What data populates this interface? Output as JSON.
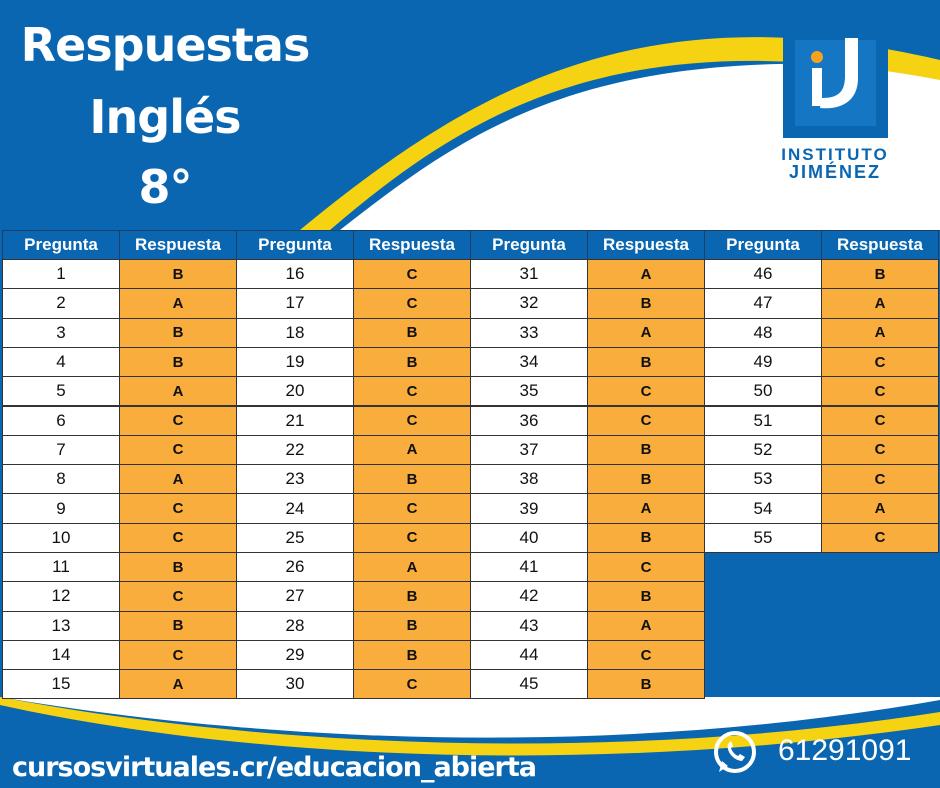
{
  "header": {
    "title_lines": [
      "Respuestas",
      "Inglés",
      "8°"
    ]
  },
  "logo": {
    "line1": "INSTITUTO",
    "line2": "JIMÉNEZ"
  },
  "table": {
    "headers": [
      "Pregunta",
      "Respuesta",
      "Pregunta",
      "Respuesta",
      "Pregunta",
      "Respuesta",
      "Pregunta",
      "Respuesta"
    ],
    "groups": [
      {
        "rows": [
          [
            1,
            "B"
          ],
          [
            2,
            "A"
          ],
          [
            3,
            "B"
          ],
          [
            4,
            "B"
          ],
          [
            5,
            "A"
          ],
          [
            6,
            "C"
          ],
          [
            7,
            "C"
          ],
          [
            8,
            "A"
          ],
          [
            9,
            "C"
          ],
          [
            10,
            "C"
          ],
          [
            11,
            "B"
          ],
          [
            12,
            "C"
          ],
          [
            13,
            "B"
          ],
          [
            14,
            "C"
          ],
          [
            15,
            "A"
          ]
        ]
      },
      {
        "rows": [
          [
            16,
            "C"
          ],
          [
            17,
            "C"
          ],
          [
            18,
            "B"
          ],
          [
            19,
            "B"
          ],
          [
            20,
            "C"
          ],
          [
            21,
            "C"
          ],
          [
            22,
            "A"
          ],
          [
            23,
            "B"
          ],
          [
            24,
            "C"
          ],
          [
            25,
            "C"
          ],
          [
            26,
            "A"
          ],
          [
            27,
            "B"
          ],
          [
            28,
            "B"
          ],
          [
            29,
            "B"
          ],
          [
            30,
            "C"
          ]
        ]
      },
      {
        "rows": [
          [
            31,
            "A"
          ],
          [
            32,
            "B"
          ],
          [
            33,
            "A"
          ],
          [
            34,
            "B"
          ],
          [
            35,
            "C"
          ],
          [
            36,
            "C"
          ],
          [
            37,
            "B"
          ],
          [
            38,
            "B"
          ],
          [
            39,
            "A"
          ],
          [
            40,
            "B"
          ],
          [
            41,
            "C"
          ],
          [
            42,
            "B"
          ],
          [
            43,
            "A"
          ],
          [
            44,
            "C"
          ],
          [
            45,
            "B"
          ]
        ]
      },
      {
        "rows": [
          [
            46,
            "B"
          ],
          [
            47,
            "A"
          ],
          [
            48,
            "A"
          ],
          [
            49,
            "C"
          ],
          [
            50,
            "C"
          ],
          [
            51,
            "C"
          ],
          [
            52,
            "C"
          ],
          [
            53,
            "C"
          ],
          [
            54,
            "A"
          ],
          [
            55,
            "C"
          ]
        ]
      }
    ]
  },
  "footer": {
    "url": "cursosvirtuales.cr/educacion_abierta",
    "phone": "61291091"
  }
}
